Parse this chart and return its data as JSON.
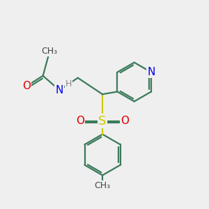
{
  "bg_color": "#efefef",
  "bond_color": "#3a7a5a",
  "bond_width": 1.6,
  "atom_colors": {
    "O": "#dd0000",
    "N": "#0000ee",
    "S": "#cccc00",
    "H": "#888888",
    "C": "#000000"
  },
  "font_size_atom": 11,
  "font_size_small": 9,
  "font_size_h": 9
}
